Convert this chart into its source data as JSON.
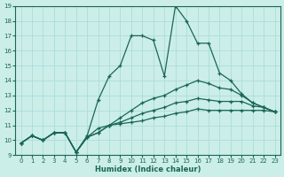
{
  "xlabel": "Humidex (Indice chaleur)",
  "bg_color": "#cceee8",
  "grid_color": "#aadddd",
  "line_color": "#1a6655",
  "xlim": [
    -0.5,
    23.5
  ],
  "ylim": [
    9,
    19
  ],
  "xticks": [
    0,
    1,
    2,
    3,
    4,
    5,
    6,
    7,
    8,
    9,
    10,
    11,
    12,
    13,
    14,
    15,
    16,
    17,
    18,
    19,
    20,
    21,
    22,
    23
  ],
  "yticks": [
    9,
    10,
    11,
    12,
    13,
    14,
    15,
    16,
    17,
    18,
    19
  ],
  "s1": [
    9.8,
    10.3,
    10.0,
    10.5,
    10.5,
    9.2,
    10.2,
    10.5,
    11.0,
    11.1,
    11.2,
    11.3,
    11.5,
    11.6,
    11.8,
    11.9,
    12.1,
    12.0,
    12.0,
    12.0,
    12.0,
    12.0,
    12.0,
    11.9
  ],
  "s2": [
    9.8,
    10.3,
    10.0,
    10.5,
    10.5,
    9.2,
    10.2,
    10.5,
    11.0,
    11.2,
    11.5,
    11.8,
    12.0,
    12.2,
    12.5,
    12.6,
    12.8,
    12.7,
    12.6,
    12.6,
    12.6,
    12.3,
    12.2,
    11.9
  ],
  "s3": [
    9.8,
    10.3,
    10.0,
    10.5,
    10.5,
    9.2,
    10.2,
    10.8,
    11.0,
    11.5,
    12.0,
    12.5,
    12.8,
    13.0,
    13.4,
    13.7,
    14.0,
    13.8,
    13.5,
    13.4,
    13.0,
    12.5,
    12.2,
    11.9
  ],
  "s4": [
    9.8,
    10.3,
    10.0,
    10.5,
    10.5,
    9.2,
    10.3,
    12.7,
    14.3,
    15.0,
    17.0,
    17.0,
    16.7,
    14.3,
    19.0,
    18.0,
    16.5,
    16.5,
    14.5,
    14.0,
    13.1,
    12.5,
    12.2,
    11.9
  ]
}
